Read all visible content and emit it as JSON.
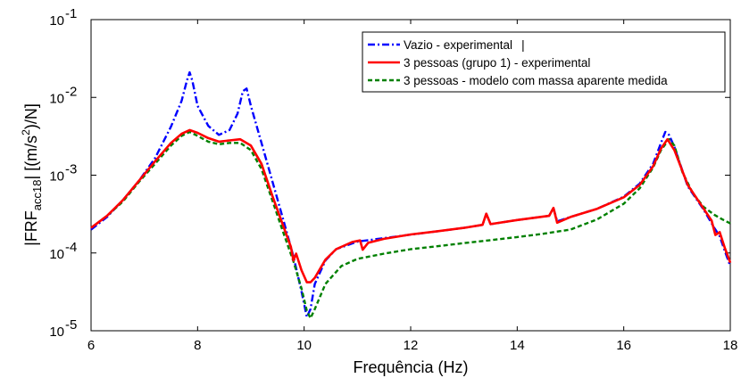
{
  "chart_data": {
    "type": "line",
    "xlabel": "Frequência (Hz)",
    "ylabel": {
      "prefix": "|FRF",
      "subscript": "acc18",
      "middle": "|  [(m/s",
      "superscript": "2",
      "suffix": ")/N]"
    },
    "xlim": [
      6,
      18
    ],
    "ylim": [
      1e-05,
      0.1
    ],
    "yscale": "log",
    "grid": false,
    "legend_position": "top-right",
    "x_ticks": [
      "6",
      "8",
      "10",
      "12",
      "14",
      "16",
      "18"
    ],
    "y_ticks": [
      {
        "base": "10",
        "exp": "-5"
      },
      {
        "base": "10",
        "exp": "-4"
      },
      {
        "base": "10",
        "exp": "-3"
      },
      {
        "base": "10",
        "exp": "-2"
      },
      {
        "base": "10",
        "exp": "-1"
      }
    ],
    "series": [
      {
        "name": "Vazio - experimental",
        "legend_suffix": "|",
        "color": "#0000ff",
        "style": "dash-dot",
        "x": [
          6.0,
          6.3,
          6.6,
          6.9,
          7.2,
          7.5,
          7.7,
          7.8,
          7.85,
          7.9,
          8.0,
          8.2,
          8.4,
          8.6,
          8.75,
          8.85,
          8.92,
          9.0,
          9.2,
          9.4,
          9.6,
          9.8,
          9.95,
          10.05,
          10.12,
          10.2,
          10.4,
          10.6,
          11.0,
          11.5,
          12.0,
          13.0,
          13.35,
          13.42,
          13.5,
          14.0,
          14.6,
          14.68,
          14.75,
          15.0,
          15.5,
          16.0,
          16.3,
          16.55,
          16.7,
          16.78,
          16.85,
          16.95,
          17.2,
          17.5,
          17.7,
          17.8,
          17.9,
          18.0
        ],
        "y": [
          0.0002,
          0.00029,
          0.00048,
          0.00085,
          0.00165,
          0.0042,
          0.009,
          0.0165,
          0.021,
          0.0165,
          0.0078,
          0.0043,
          0.0033,
          0.0038,
          0.0062,
          0.012,
          0.013,
          0.0078,
          0.0026,
          0.00085,
          0.00028,
          9e-05,
          3.2e-05,
          1.5e-05,
          1.9e-05,
          4e-05,
          8e-05,
          0.000112,
          0.00014,
          0.000155,
          0.000172,
          0.00021,
          0.00023,
          0.00032,
          0.000235,
          0.000265,
          0.0003,
          0.00038,
          0.000255,
          0.00029,
          0.00037,
          0.00053,
          0.00078,
          0.0014,
          0.0026,
          0.0036,
          0.0033,
          0.0023,
          0.00072,
          0.00036,
          0.00021,
          0.000165,
          0.000105,
          6.8e-05
        ]
      },
      {
        "name": "3 pessoas (grupo 1) - experimental",
        "color": "#ff0000",
        "style": "solid",
        "x": [
          6.0,
          6.3,
          6.6,
          6.9,
          7.2,
          7.5,
          7.7,
          7.85,
          8.0,
          8.2,
          8.4,
          8.6,
          8.8,
          9.0,
          9.2,
          9.4,
          9.6,
          9.75,
          9.8,
          9.85,
          9.95,
          10.05,
          10.12,
          10.2,
          10.4,
          10.6,
          10.9,
          11.05,
          11.1,
          11.2,
          11.5,
          12.0,
          12.5,
          13.0,
          13.35,
          13.42,
          13.5,
          14.0,
          14.6,
          14.68,
          14.75,
          15.0,
          15.5,
          16.0,
          16.3,
          16.55,
          16.7,
          16.82,
          16.95,
          17.2,
          17.5,
          17.65,
          17.72,
          17.8,
          17.9,
          18.0
        ],
        "y": [
          0.00021,
          0.0003,
          0.00048,
          0.00085,
          0.0015,
          0.0026,
          0.0034,
          0.0038,
          0.0035,
          0.003,
          0.0027,
          0.0028,
          0.0029,
          0.0024,
          0.0014,
          0.00055,
          0.00023,
          0.00012,
          8e-05,
          9.8e-05,
          6e-05,
          4.2e-05,
          4.2e-05,
          4.8e-05,
          8.2e-05,
          0.000112,
          0.000138,
          0.000145,
          0.00011,
          0.000135,
          0.000152,
          0.000173,
          0.00019,
          0.00021,
          0.00023,
          0.00032,
          0.000235,
          0.000265,
          0.0003,
          0.00038,
          0.000245,
          0.00029,
          0.00037,
          0.00052,
          0.00075,
          0.0013,
          0.0022,
          0.0029,
          0.0021,
          0.00075,
          0.00037,
          0.00026,
          0.00017,
          0.000185,
          0.000115,
          7.5e-05
        ]
      },
      {
        "name": "3 pessoas - modelo com massa aparente medida",
        "color": "#008000",
        "style": "dashed",
        "x": [
          6.0,
          6.3,
          6.6,
          6.9,
          7.2,
          7.5,
          7.7,
          7.85,
          8.0,
          8.2,
          8.4,
          8.6,
          8.8,
          9.0,
          9.2,
          9.4,
          9.6,
          9.8,
          9.95,
          10.05,
          10.12,
          10.2,
          10.4,
          10.7,
          11.0,
          11.5,
          12.0,
          12.5,
          13.0,
          13.5,
          14.0,
          14.5,
          15.0,
          15.5,
          16.0,
          16.3,
          16.55,
          16.7,
          16.85,
          16.95,
          17.1,
          17.3,
          17.5,
          17.7,
          17.85,
          18.0
        ],
        "y": [
          0.00021,
          0.0003,
          0.00046,
          0.00082,
          0.0014,
          0.0024,
          0.0032,
          0.0036,
          0.0032,
          0.0027,
          0.0025,
          0.0026,
          0.0026,
          0.0021,
          0.0012,
          0.00048,
          0.00019,
          7.8e-05,
          3.5e-05,
          1.8e-05,
          1.45e-05,
          1.9e-05,
          4e-05,
          6.8e-05,
          8.4e-05,
          9.8e-05,
          0.000112,
          0.000122,
          0.000134,
          0.000146,
          0.00016,
          0.000177,
          0.0002,
          0.00027,
          0.00043,
          0.00068,
          0.00125,
          0.0021,
          0.0029,
          0.0024,
          0.0011,
          0.00058,
          0.00039,
          0.00031,
          0.00027,
          0.00024
        ]
      }
    ]
  }
}
